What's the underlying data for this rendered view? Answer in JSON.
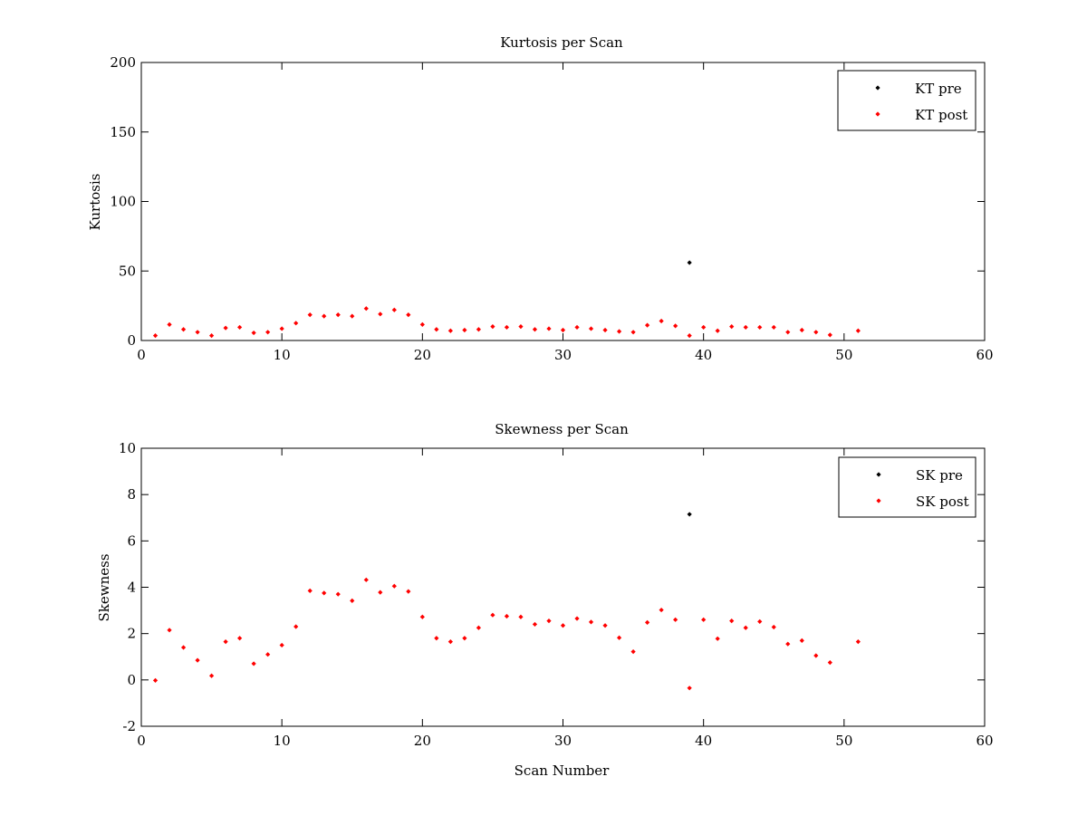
{
  "chart_data": [
    {
      "type": "scatter",
      "title": "Kurtosis per Scan",
      "xlabel": "",
      "ylabel": "Kurtosis",
      "xlim": [
        0,
        60
      ],
      "ylim": [
        0,
        200
      ],
      "xticks": [
        0,
        10,
        20,
        30,
        40,
        50,
        60
      ],
      "yticks": [
        0,
        50,
        100,
        150,
        200
      ],
      "grid": false,
      "legend_position": "top-right",
      "series": [
        {
          "name": "KT pre",
          "color": "#000000",
          "x": [
            39
          ],
          "y": [
            56
          ]
        },
        {
          "name": "KT post",
          "color": "#ff0000",
          "x": [
            1,
            2,
            3,
            4,
            5,
            6,
            7,
            8,
            9,
            10,
            11,
            12,
            13,
            14,
            15,
            16,
            17,
            18,
            19,
            20,
            21,
            22,
            23,
            24,
            25,
            26,
            27,
            28,
            29,
            30,
            31,
            32,
            33,
            34,
            35,
            36,
            37,
            38,
            39,
            40,
            41,
            42,
            43,
            44,
            45,
            46,
            47,
            48,
            49,
            51
          ],
          "y": [
            3.5,
            11.5,
            8,
            6,
            3.5,
            9,
            9.5,
            5.5,
            6,
            8.5,
            12.5,
            18.5,
            17.5,
            18.5,
            17.5,
            23,
            19,
            22,
            18.5,
            11.5,
            8,
            7,
            7.5,
            8,
            10,
            9.5,
            10,
            8,
            8.5,
            7.5,
            9.5,
            8.5,
            7.5,
            6.5,
            6,
            11,
            14,
            10.5,
            3.5,
            9.5,
            7,
            10,
            9.5,
            9.5,
            9.5,
            6,
            7.5,
            6,
            4,
            7
          ]
        }
      ]
    },
    {
      "type": "scatter",
      "title": "Skewness per Scan",
      "xlabel": "Scan Number",
      "ylabel": "Skewness",
      "xlim": [
        0,
        60
      ],
      "ylim": [
        -2,
        10
      ],
      "xticks": [
        0,
        10,
        20,
        30,
        40,
        50,
        60
      ],
      "yticks": [
        -2,
        0,
        2,
        4,
        6,
        8,
        10
      ],
      "grid": false,
      "legend_position": "top-right",
      "series": [
        {
          "name": "SK pre",
          "color": "#000000",
          "x": [
            39
          ],
          "y": [
            7.15
          ]
        },
        {
          "name": "SK post",
          "color": "#ff0000",
          "x": [
            1,
            2,
            3,
            4,
            5,
            6,
            7,
            8,
            9,
            10,
            11,
            12,
            13,
            14,
            15,
            16,
            17,
            18,
            19,
            20,
            21,
            22,
            23,
            24,
            25,
            26,
            27,
            28,
            29,
            30,
            31,
            32,
            33,
            34,
            35,
            36,
            37,
            38,
            39,
            40,
            41,
            42,
            43,
            44,
            45,
            46,
            47,
            48,
            49,
            51
          ],
          "y": [
            -0.02,
            2.15,
            1.4,
            0.85,
            0.18,
            1.65,
            1.8,
            0.7,
            1.1,
            1.5,
            2.3,
            3.85,
            3.75,
            3.7,
            3.42,
            4.32,
            3.78,
            4.05,
            3.82,
            2.72,
            1.8,
            1.65,
            1.8,
            2.25,
            2.8,
            2.75,
            2.72,
            2.4,
            2.55,
            2.35,
            2.65,
            2.5,
            2.35,
            1.82,
            1.22,
            2.48,
            3.02,
            2.6,
            -0.35,
            2.6,
            1.78,
            2.55,
            2.25,
            2.52,
            2.28,
            1.55,
            1.7,
            1.05,
            0.75,
            1.65
          ]
        }
      ]
    }
  ]
}
